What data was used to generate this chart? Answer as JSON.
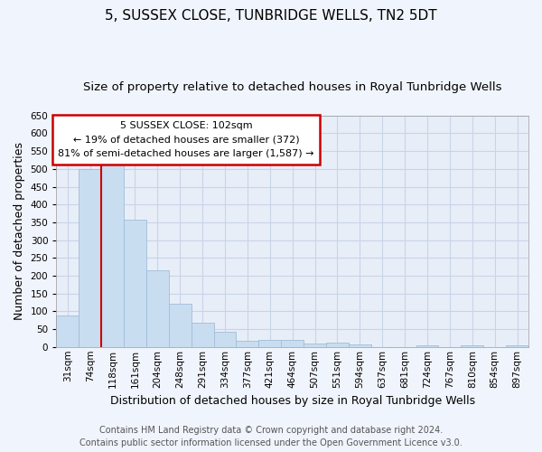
{
  "title": "5, SUSSEX CLOSE, TUNBRIDGE WELLS, TN2 5DT",
  "subtitle": "Size of property relative to detached houses in Royal Tunbridge Wells",
  "xlabel": "Distribution of detached houses by size in Royal Tunbridge Wells",
  "ylabel": "Number of detached properties",
  "footer_line1": "Contains HM Land Registry data © Crown copyright and database right 2024.",
  "footer_line2": "Contains public sector information licensed under the Open Government Licence v3.0.",
  "categories": [
    "31sqm",
    "74sqm",
    "118sqm",
    "161sqm",
    "204sqm",
    "248sqm",
    "291sqm",
    "334sqm",
    "377sqm",
    "421sqm",
    "464sqm",
    "507sqm",
    "551sqm",
    "594sqm",
    "637sqm",
    "681sqm",
    "724sqm",
    "767sqm",
    "810sqm",
    "854sqm",
    "897sqm"
  ],
  "values": [
    88,
    500,
    527,
    358,
    214,
    122,
    68,
    42,
    16,
    20,
    20,
    10,
    12,
    8,
    0,
    0,
    5,
    0,
    5,
    0,
    4
  ],
  "bar_color": "#c9ddf0",
  "bar_edge_color": "#a0bdd8",
  "property_label": "5 SUSSEX CLOSE: 102sqm",
  "annotation_line1": "← 19% of detached houses are smaller (372)",
  "annotation_line2": "81% of semi-detached houses are larger (1,587) →",
  "vline_color": "#cc0000",
  "vline_x_index": 1.5,
  "ylim": [
    0,
    650
  ],
  "yticks": [
    0,
    50,
    100,
    150,
    200,
    250,
    300,
    350,
    400,
    450,
    500,
    550,
    600,
    650
  ],
  "grid_color": "#c8d4e8",
  "bg_color": "#e8eef8",
  "fig_bg_color": "#f0f4fc",
  "annotation_box_color": "#ffffff",
  "annotation_box_edge": "#cc0000",
  "title_fontsize": 11,
  "subtitle_fontsize": 9.5,
  "axis_label_fontsize": 9,
  "tick_fontsize": 7.5,
  "annotation_fontsize": 8,
  "footer_fontsize": 7
}
